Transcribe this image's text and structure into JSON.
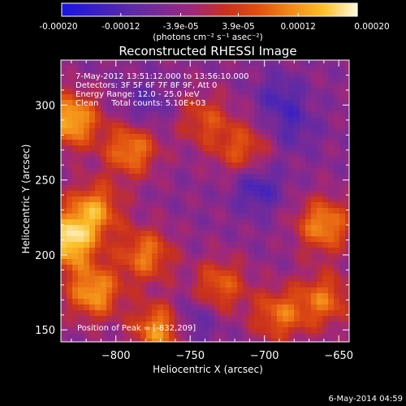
{
  "chart_data": {
    "type": "heatmap",
    "title": "Reconstructed RHESSI Image",
    "xlabel": "Heliocentric X (arcsec)",
    "ylabel": "Heliocentric Y (arcsec)",
    "xlim": [
      -837,
      -643
    ],
    "ylim": [
      142,
      330
    ],
    "xticks": [
      -800,
      -750,
      -700,
      -650
    ],
    "yticks": [
      150,
      200,
      250,
      300
    ],
    "colorbar": {
      "range": [
        -0.0002,
        0.0002
      ],
      "tick_values": [
        -0.0002,
        -0.00012,
        -3.9e-05,
        3.9e-05,
        0.00012,
        0.0002
      ],
      "tick_labels": [
        "-0.00020",
        "-0.00012",
        "-3.9e-05",
        "3.9e-05",
        "0.00012",
        "0.00020"
      ],
      "unit_label": "(photons cm⁻² s⁻¹ asec⁻²)",
      "colors": [
        "#1a16e0",
        "#3b1fc4",
        "#5a2aa8",
        "#7a2a96",
        "#a0287a",
        "#c8301e",
        "#e05010",
        "#f28a18",
        "#fbbf2a",
        "#fff8d8"
      ]
    },
    "annotations": {
      "time": "7-May-2012 13:51:12.000 to 13:56:10.000",
      "detectors": "Detectors: 3F 5F 6F 7F 8F 9F, Att 0",
      "energy": "Energy Range: 12.0 - 25.0 keV",
      "clean": "Clean     Total counts: 5.10E+03",
      "peak": "Position of Peak = [-832,209]"
    },
    "hot_regions": [
      {
        "x": -830,
        "y": 290,
        "strength": 0.9
      },
      {
        "x": -815,
        "y": 230,
        "strength": 0.75
      },
      {
        "x": -790,
        "y": 270,
        "strength": 0.7
      },
      {
        "x": -832,
        "y": 209,
        "strength": 1.0
      },
      {
        "x": -815,
        "y": 175,
        "strength": 0.8
      },
      {
        "x": -780,
        "y": 200,
        "strength": 0.65
      },
      {
        "x": -770,
        "y": 150,
        "strength": 0.8
      },
      {
        "x": -730,
        "y": 180,
        "strength": 0.55
      },
      {
        "x": -690,
        "y": 160,
        "strength": 0.6
      },
      {
        "x": -660,
        "y": 220,
        "strength": 0.75
      },
      {
        "x": -660,
        "y": 170,
        "strength": 0.6
      },
      {
        "x": -715,
        "y": 270,
        "strength": 0.5
      },
      {
        "x": -740,
        "y": 290,
        "strength": 0.45
      }
    ],
    "cold_regions": [
      {
        "x": -705,
        "y": 245,
        "strength": 0.8
      },
      {
        "x": -750,
        "y": 155,
        "strength": 0.7
      },
      {
        "x": -780,
        "y": 300,
        "strength": 0.5
      },
      {
        "x": -690,
        "y": 305,
        "strength": 0.6
      },
      {
        "x": -680,
        "y": 285,
        "strength": 0.5
      }
    ]
  },
  "footer": {
    "timestamp": "6-May-2014 04:59"
  }
}
